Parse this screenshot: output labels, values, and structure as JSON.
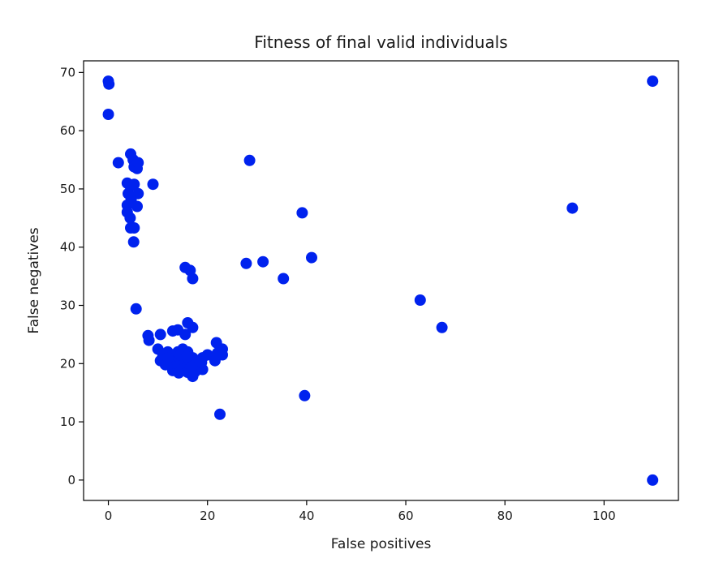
{
  "chart_data": {
    "type": "scatter",
    "title": "Fitness of final valid individuals",
    "xlabel": "False positives",
    "ylabel": "False negatives",
    "xlim": [
      -5,
      115
    ],
    "ylim": [
      -3.5,
      72
    ],
    "xticks": [
      0,
      20,
      40,
      60,
      80,
      100
    ],
    "yticks": [
      0,
      10,
      20,
      30,
      40,
      50,
      60,
      70
    ],
    "grid": false,
    "marker_color": "#0022ee",
    "series": [
      {
        "points": [
          [
            0,
            68.5
          ],
          [
            0.1,
            68
          ],
          [
            0,
            62.8
          ],
          [
            2,
            54.5
          ],
          [
            4.5,
            56
          ],
          [
            5,
            55
          ],
          [
            5.5,
            54
          ],
          [
            5.8,
            53.5
          ],
          [
            5.2,
            53.8
          ],
          [
            6,
            54.5
          ],
          [
            3.8,
            51
          ],
          [
            4.4,
            50.5
          ],
          [
            5.2,
            50.8
          ],
          [
            9,
            50.8
          ],
          [
            4,
            49.2
          ],
          [
            6,
            49.2
          ],
          [
            4.6,
            48.2
          ],
          [
            3.8,
            47.2
          ],
          [
            5.8,
            47
          ],
          [
            3.8,
            46
          ],
          [
            4.4,
            45
          ],
          [
            4.5,
            43.3
          ],
          [
            5.2,
            43.3
          ],
          [
            5.1,
            40.9
          ],
          [
            5.6,
            29.4
          ],
          [
            15.5,
            36.5
          ],
          [
            16.5,
            36
          ],
          [
            17,
            34.6
          ],
          [
            27.8,
            37.2
          ],
          [
            28.5,
            54.9
          ],
          [
            31.2,
            37.5
          ],
          [
            35.3,
            34.6
          ],
          [
            39.1,
            45.9
          ],
          [
            41,
            38.2
          ],
          [
            39.6,
            14.5
          ],
          [
            22.5,
            11.3
          ],
          [
            62.9,
            30.9
          ],
          [
            67.3,
            26.2
          ],
          [
            93.6,
            46.7
          ],
          [
            109.8,
            68.5
          ],
          [
            109.8,
            0
          ],
          [
            8,
            24.8
          ],
          [
            8.2,
            24
          ],
          [
            10.5,
            25
          ],
          [
            13,
            25.6
          ],
          [
            14,
            25.8
          ],
          [
            15.5,
            25
          ],
          [
            16,
            27
          ],
          [
            17,
            26.2
          ],
          [
            10,
            22.5
          ],
          [
            11,
            21.5
          ],
          [
            12,
            22
          ],
          [
            13,
            21.5
          ],
          [
            14,
            22
          ],
          [
            15,
            22.5
          ],
          [
            16,
            22
          ],
          [
            17,
            21
          ],
          [
            10.5,
            20.5
          ],
          [
            11.5,
            19.8
          ],
          [
            12.5,
            20.5
          ],
          [
            13.5,
            20
          ],
          [
            14.5,
            20.8
          ],
          [
            15.5,
            20.2
          ],
          [
            16.5,
            20.6
          ],
          [
            18,
            20.5
          ],
          [
            19,
            21
          ],
          [
            20,
            21.5
          ],
          [
            21.5,
            20.5
          ],
          [
            22,
            21.8
          ],
          [
            21.8,
            23.6
          ],
          [
            23,
            22.5
          ],
          [
            23,
            21.5
          ],
          [
            13,
            18.8
          ],
          [
            14,
            19.5
          ],
          [
            15,
            19
          ],
          [
            16,
            18.5
          ],
          [
            17,
            17.8
          ],
          [
            18,
            19.5
          ],
          [
            19,
            19
          ],
          [
            17.5,
            18.6
          ],
          [
            14.5,
            21.5
          ],
          [
            15.8,
            21.2
          ],
          [
            12,
            21
          ],
          [
            16.8,
            19.4
          ],
          [
            18.8,
            20.2
          ],
          [
            14.2,
            18.4
          ]
        ]
      }
    ]
  }
}
